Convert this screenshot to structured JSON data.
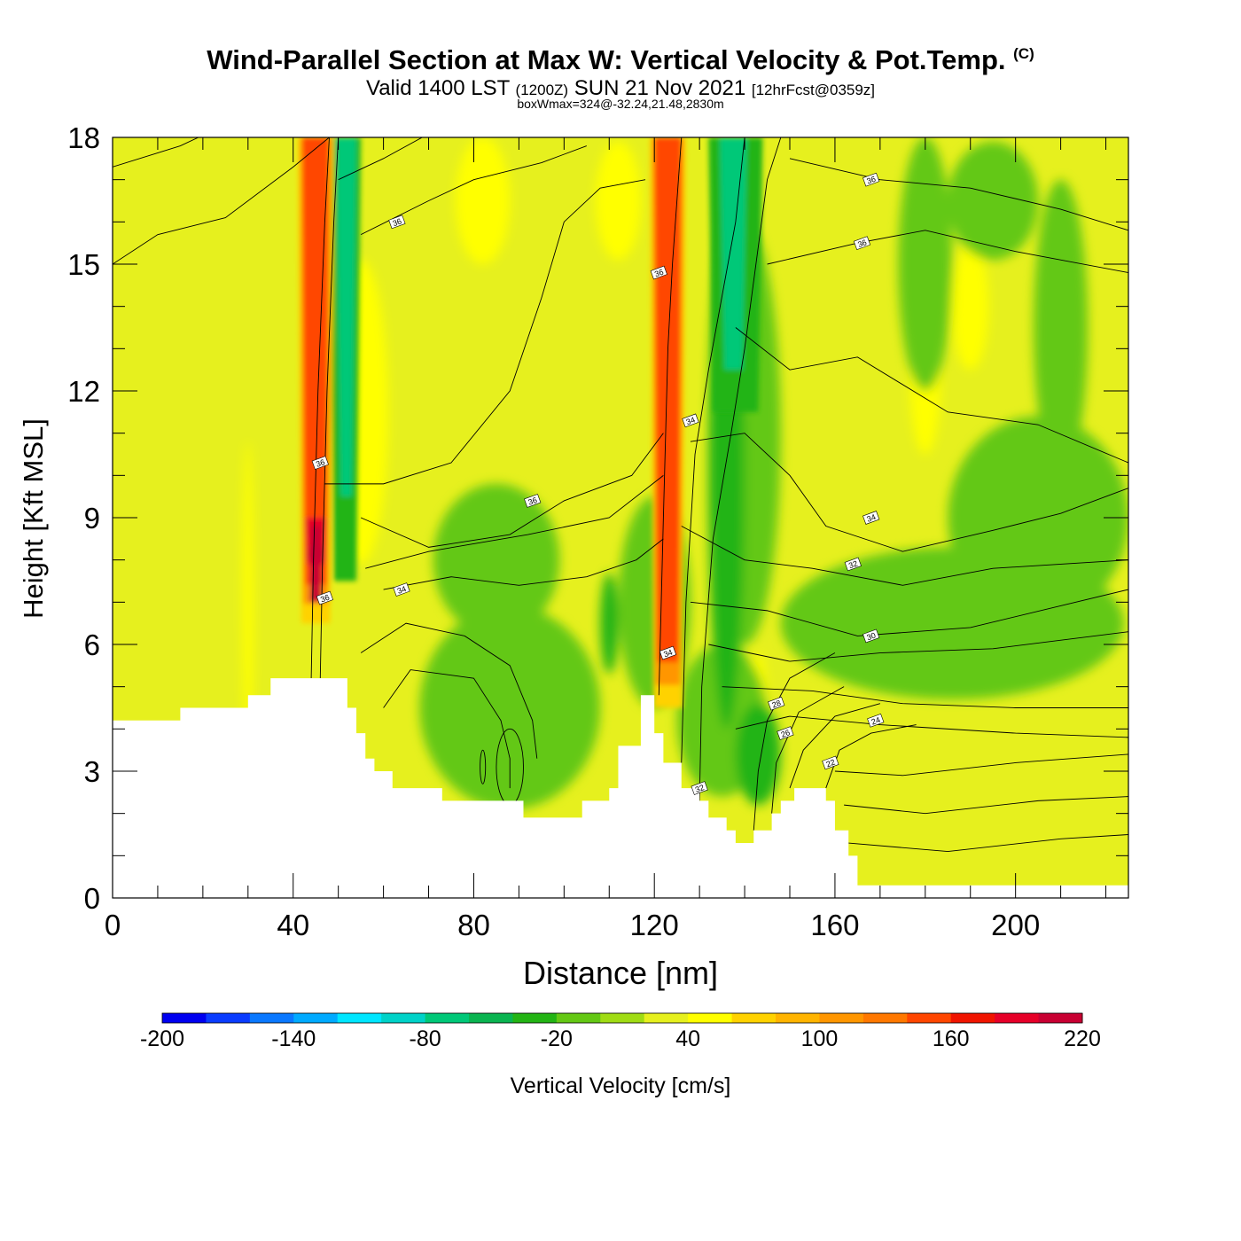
{
  "header": {
    "title": "Wind-Parallel Section at Max W: Vertical Velocity & Pot.Temp.",
    "copyright": "(C)",
    "valid_prefix": "Valid 1400 LST",
    "valid_utc": "(1200Z)",
    "valid_date": "SUN 21 Nov 2021",
    "forecast": "[12hrFcst@0359z]",
    "box_wmax": "boxWmax=324@-32.24,21.48,2830m"
  },
  "chart_data": {
    "type": "heatmap",
    "title": "Wind-Parallel Section at Max W: Vertical Velocity & Pot.Temp.",
    "xlabel": "Distance [nm]",
    "ylabel": "Height [Kft MSL]",
    "xlim": [
      0,
      225
    ],
    "ylim": [
      0,
      18
    ],
    "x_ticks": [
      "0",
      "40",
      "80",
      "120",
      "160",
      "200"
    ],
    "y_ticks": [
      "0",
      "3",
      "6",
      "9",
      "12",
      "15",
      "18"
    ],
    "colorbar": {
      "label": "Vertical Velocity [cm/s]",
      "min": -200,
      "max": 260,
      "step": 20,
      "tick_labels": [
        "-200",
        "-140",
        "-80",
        "-20",
        "40",
        "100",
        "160",
        "220"
      ],
      "colors": [
        "#0000f0",
        "#0a3cff",
        "#0a78ff",
        "#00aaff",
        "#00e6ff",
        "#00d2c8",
        "#00c878",
        "#0ab450",
        "#23b414",
        "#64c814",
        "#a0dc14",
        "#e6f01e",
        "#ffff00",
        "#ffd200",
        "#ffb400",
        "#ff9600",
        "#ff7800",
        "#ff4600",
        "#f01400",
        "#e60028",
        "#c80032"
      ]
    },
    "terrain_kft": [
      [
        0,
        4.2
      ],
      [
        15,
        4.2
      ],
      [
        15,
        4.5
      ],
      [
        30,
        4.5
      ],
      [
        30,
        4.8
      ],
      [
        35,
        4.8
      ],
      [
        35,
        5.2
      ],
      [
        52,
        5.2
      ],
      [
        52,
        4.5
      ],
      [
        54,
        4.5
      ],
      [
        54,
        3.9
      ],
      [
        56,
        3.9
      ],
      [
        56,
        3.3
      ],
      [
        58,
        3.3
      ],
      [
        58,
        3.0
      ],
      [
        62,
        3.0
      ],
      [
        62,
        2.6
      ],
      [
        73,
        2.6
      ],
      [
        73,
        2.3
      ],
      [
        91,
        2.3
      ],
      [
        91,
        1.9
      ],
      [
        104,
        1.9
      ],
      [
        104,
        2.3
      ],
      [
        110,
        2.3
      ],
      [
        110,
        2.6
      ],
      [
        112,
        2.6
      ],
      [
        112,
        3.6
      ],
      [
        117,
        3.6
      ],
      [
        117,
        4.8
      ],
      [
        120,
        4.8
      ],
      [
        120,
        3.9
      ],
      [
        122,
        3.9
      ],
      [
        122,
        3.2
      ],
      [
        126,
        3.2
      ],
      [
        126,
        2.6
      ],
      [
        130,
        2.6
      ],
      [
        130,
        2.3
      ],
      [
        132,
        2.3
      ],
      [
        132,
        1.9
      ],
      [
        136,
        1.9
      ],
      [
        136,
        1.6
      ],
      [
        138,
        1.6
      ],
      [
        138,
        1.3
      ],
      [
        142,
        1.3
      ],
      [
        142,
        1.6
      ],
      [
        146,
        1.6
      ],
      [
        146,
        2.0
      ],
      [
        148,
        2.0
      ],
      [
        148,
        2.3
      ],
      [
        151,
        2.3
      ],
      [
        151,
        2.6
      ],
      [
        158,
        2.6
      ],
      [
        158,
        2.3
      ],
      [
        160,
        2.3
      ],
      [
        160,
        1.6
      ],
      [
        163,
        1.6
      ],
      [
        163,
        1.0
      ],
      [
        165,
        1.0
      ],
      [
        165,
        0.3
      ],
      [
        225,
        0.3
      ]
    ],
    "updraft_cores": [
      {
        "x": 45,
        "ybot": 6.5,
        "ytop": 18,
        "peak": 324
      },
      {
        "x": 123,
        "ybot": 4.5,
        "ytop": 18,
        "peak": 150
      }
    ],
    "theta_contour_labels": [
      {
        "text": "36",
        "x": 63,
        "y": 16.0
      },
      {
        "text": "36",
        "x": 168,
        "y": 17.0
      },
      {
        "text": "36",
        "x": 166,
        "y": 15.5
      },
      {
        "text": "36",
        "x": 121,
        "y": 14.8
      },
      {
        "text": "36",
        "x": 46,
        "y": 10.3
      },
      {
        "text": "36",
        "x": 93,
        "y": 9.4
      },
      {
        "text": "36",
        "x": 47,
        "y": 7.1
      },
      {
        "text": "34",
        "x": 64,
        "y": 7.3
      },
      {
        "text": "34",
        "x": 128,
        "y": 11.3
      },
      {
        "text": "34",
        "x": 168,
        "y": 9.0
      },
      {
        "text": "34",
        "x": 123,
        "y": 5.8
      },
      {
        "text": "32",
        "x": 164,
        "y": 7.9
      },
      {
        "text": "32",
        "x": 130,
        "y": 2.6
      },
      {
        "text": "30",
        "x": 168,
        "y": 6.2
      },
      {
        "text": "28",
        "x": 147,
        "y": 4.6
      },
      {
        "text": "26",
        "x": 149,
        "y": 3.9
      },
      {
        "text": "24",
        "x": 169,
        "y": 4.2
      },
      {
        "text": "22",
        "x": 159,
        "y": 3.2
      }
    ]
  }
}
